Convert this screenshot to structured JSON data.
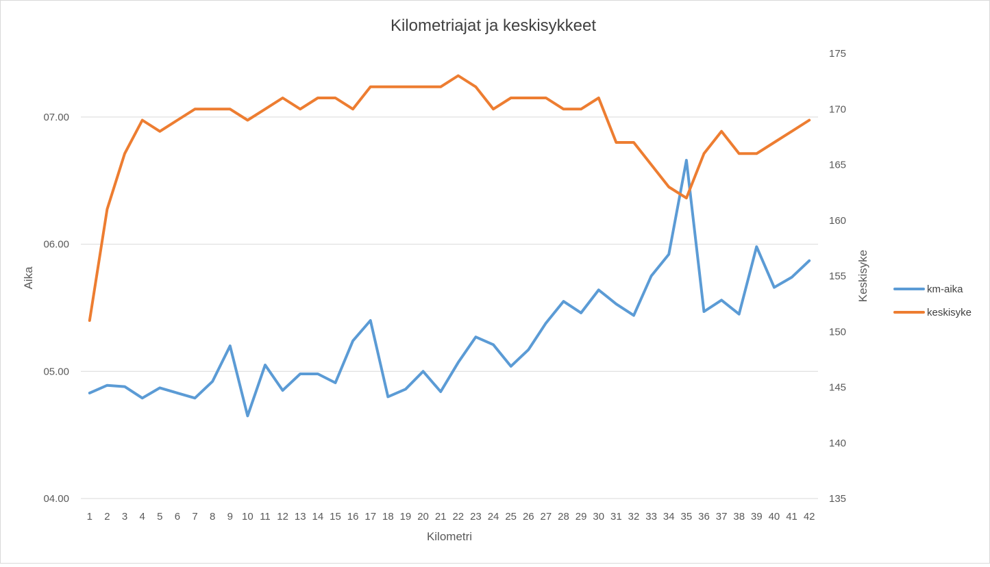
{
  "chart_data": {
    "type": "line",
    "title": "Kilometriajat ja keskisykkeet",
    "xlabel": "Kilometri",
    "ylabel_left": "Aika",
    "ylabel_right": "Keskisyke",
    "categories": [
      "1",
      "2",
      "3",
      "4",
      "5",
      "6",
      "7",
      "8",
      "9",
      "10",
      "11",
      "12",
      "13",
      "14",
      "15",
      "16",
      "17",
      "18",
      "19",
      "20",
      "21",
      "22",
      "23",
      "24",
      "25",
      "26",
      "27",
      "28",
      "29",
      "30",
      "31",
      "32",
      "33",
      "34",
      "35",
      "36",
      "37",
      "38",
      "39",
      "40",
      "41",
      "42"
    ],
    "y_left": {
      "range": [
        4.0,
        7.5
      ],
      "ticks": [
        4.0,
        5.0,
        6.0,
        7.0
      ],
      "tick_labels": [
        "04.00",
        "05.00",
        "06.00",
        "07.00"
      ]
    },
    "y_right": {
      "range": [
        135,
        175
      ],
      "ticks": [
        135,
        140,
        145,
        150,
        155,
        160,
        165,
        170,
        175
      ],
      "tick_labels": [
        "135",
        "140",
        "145",
        "150",
        "155",
        "160",
        "165",
        "170",
        "175"
      ]
    },
    "grid": true,
    "legend_position": "right",
    "series": [
      {
        "name": "km-aika",
        "axis": "left",
        "color": "#5b9bd5",
        "values": [
          4.83,
          4.89,
          4.88,
          4.79,
          4.87,
          4.83,
          4.79,
          4.92,
          5.2,
          4.65,
          5.05,
          4.85,
          4.98,
          4.98,
          4.91,
          5.24,
          5.4,
          4.8,
          4.86,
          5.0,
          4.84,
          5.07,
          5.27,
          5.21,
          5.04,
          5.17,
          5.38,
          5.55,
          5.46,
          5.64,
          5.53,
          5.44,
          5.75,
          5.92,
          6.66,
          5.47,
          5.56,
          5.45,
          5.98,
          5.66,
          5.74,
          5.87
        ]
      },
      {
        "name": "keskisyke",
        "axis": "right",
        "color": "#ed7d31",
        "values": [
          151,
          161,
          166,
          169,
          168,
          169,
          170,
          170,
          170,
          169,
          170,
          171,
          170,
          171,
          171,
          170,
          172,
          172,
          172,
          172,
          172,
          173,
          172,
          170,
          171,
          171,
          171,
          170,
          170,
          171,
          167,
          167,
          165,
          163,
          162,
          166,
          168,
          166,
          166,
          167,
          168,
          169
        ]
      }
    ]
  }
}
